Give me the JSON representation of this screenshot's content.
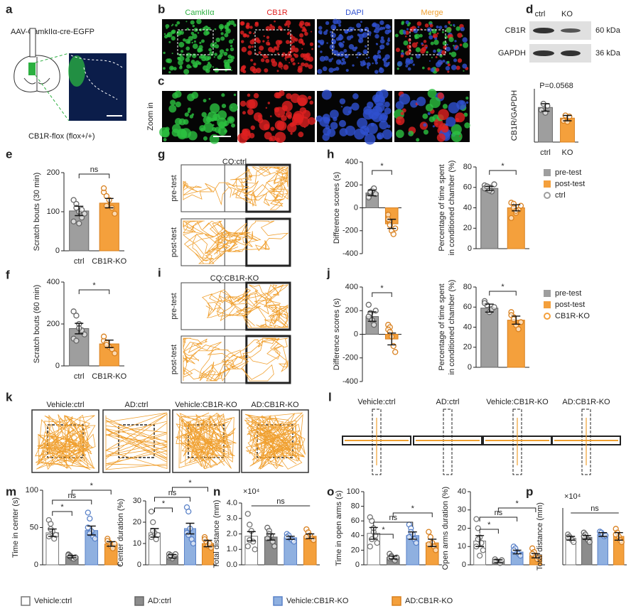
{
  "panel_letters": [
    "a",
    "b",
    "c",
    "d",
    "e",
    "f",
    "g",
    "h",
    "i",
    "j",
    "k",
    "l",
    "m",
    "n",
    "o",
    "p"
  ],
  "panel_a": {
    "virus": "AAV-CamkIIα-cre-EGFP",
    "mouse": "CB1R-flox (flox+/+)"
  },
  "panel_b": {
    "channels": [
      "CamkIIα",
      "CB1R",
      "DAPI",
      "Merge"
    ]
  },
  "panel_c": {
    "label": "Zoom in"
  },
  "panel_d": {
    "lanes": [
      "ctrl",
      "KO"
    ],
    "bands": [
      {
        "protein": "CB1R",
        "size": "60 kDa"
      },
      {
        "protein": "GAPDH",
        "size": "36 kDa"
      }
    ]
  },
  "panel_g": {
    "title": "CQ:ctrl",
    "rows": [
      "pre-test",
      "post-test"
    ]
  },
  "panel_i": {
    "title": "CQ:CB1R-KO",
    "rows": [
      "pre-test",
      "post-test"
    ]
  },
  "panel_k": {
    "groups": [
      "Vehicle:ctrl",
      "AD:ctrl",
      "Vehicle:CB1R-KO",
      "AD:CB1R-KO"
    ]
  },
  "panel_l": {
    "groups": [
      "Vehicle:ctrl",
      "AD:ctrl",
      "Vehicle:CB1R-KO",
      "AD:CB1R-KO"
    ]
  },
  "group_legend": [
    {
      "name": "Vehicle:ctrl",
      "color": "#ffffff"
    },
    {
      "name": "AD:ctrl",
      "color": "#8c8c8c"
    },
    {
      "name": "Vehicle:CB1R-KO",
      "color": "#8fb0e0"
    },
    {
      "name": "AD:CB1R-KO",
      "color": "#f4a03c"
    }
  ],
  "chart_data": [
    {
      "type": "bar",
      "y_label": [
        "CB1R/GAPDH"
      ],
      "categories": [
        "ctrl",
        "KO"
      ],
      "values": [
        0.65,
        0.45
      ],
      "errors": [
        0.07,
        0.05
      ],
      "points": [
        [
          0.6,
          0.72,
          0.55,
          0.68
        ],
        [
          0.4,
          0.5,
          0.38,
          0.48
        ]
      ],
      "colors": [
        "#9e9e9e",
        "#f4a03c"
      ],
      "ylim": [
        0,
        1
      ],
      "annotation": "P=0.0568",
      "significance": []
    },
    {
      "type": "bar",
      "y_label": [
        "Scratch bouts (30 min)"
      ],
      "categories": [
        "ctrl",
        "CB1R-KO"
      ],
      "values": [
        102,
        122
      ],
      "errors": [
        12,
        12
      ],
      "points": [
        [
          130,
          120,
          100,
          85,
          95,
          75,
          110,
          70,
          105
        ],
        [
          150,
          140,
          130,
          110,
          95,
          160,
          115
        ]
      ],
      "colors": [
        "#9e9e9e",
        "#f4a03c"
      ],
      "ylim": [
        0,
        200
      ],
      "yticks": [
        0,
        100,
        200
      ],
      "significance": [
        "ns"
      ]
    },
    {
      "type": "bar",
      "y_label": [
        "Scratch bouts (60 min)"
      ],
      "categories": [
        "ctrl",
        "CB1R-KO"
      ],
      "values": [
        178,
        105
      ],
      "errors": [
        25,
        18
      ],
      "points": [
        [
          260,
          240,
          200,
          170,
          150,
          130,
          120,
          180
        ],
        [
          120,
          110,
          90,
          80,
          60,
          140,
          100
        ]
      ],
      "colors": [
        "#9e9e9e",
        "#f4a03c"
      ],
      "ylim": [
        0,
        400
      ],
      "yticks": [
        0,
        200,
        400
      ],
      "significance": [
        "*"
      ]
    },
    {
      "type": "bar",
      "y_label": [
        "Difference scores (s)"
      ],
      "categories": [
        null,
        null
      ],
      "values": [
        130,
        -140
      ],
      "errors": [
        25,
        40
      ],
      "points": [
        [
          100,
          130,
          150,
          170,
          120,
          90,
          140
        ],
        [
          -60,
          -120,
          -200,
          -230,
          -180,
          -100,
          -150
        ]
      ],
      "colors": [
        "#9e9e9e",
        "#f4a03c"
      ],
      "ylim": [
        -400,
        400
      ],
      "yticks": [
        -400,
        -200,
        0,
        200,
        400
      ],
      "significance": [
        "*"
      ]
    },
    {
      "type": "bar",
      "y_label": [
        "Percentage of time spent",
        "in conditioned chamber (%)"
      ],
      "categories": [
        null,
        null
      ],
      "values": [
        59,
        40
      ],
      "errors": [
        2,
        3
      ],
      "points": [
        [
          62,
          58,
          60,
          56,
          63,
          59,
          61,
          57
        ],
        [
          45,
          40,
          35,
          38,
          42,
          30,
          44,
          37
        ]
      ],
      "colors": [
        "#9e9e9e",
        "#f4a03c"
      ],
      "ylim": [
        0,
        80
      ],
      "yticks": [
        0,
        20,
        40,
        60,
        80
      ],
      "significance": [
        "*"
      ],
      "legend": [
        {
          "name": "pre-test",
          "color": "#9e9e9e",
          "marker": "square"
        },
        {
          "name": "post-test",
          "color": "#f4a03c",
          "marker": "square"
        },
        {
          "name": "ctrl",
          "color": "#9e9e9e",
          "marker": "circle"
        }
      ]
    },
    {
      "type": "bar",
      "y_label": [
        "Difference scores (s)"
      ],
      "categories": [
        null,
        null
      ],
      "values": [
        150,
        -40
      ],
      "errors": [
        40,
        50
      ],
      "points": [
        [
          250,
          180,
          120,
          80,
          200,
          150
        ],
        [
          80,
          60,
          -20,
          -100,
          -150,
          40,
          20
        ]
      ],
      "colors": [
        "#9e9e9e",
        "#f4a03c"
      ],
      "ylim": [
        -400,
        400
      ],
      "yticks": [
        -400,
        -200,
        0,
        200,
        400
      ],
      "significance": [
        "*"
      ]
    },
    {
      "type": "bar",
      "y_label": [
        "Percentage of time spent",
        "in conditioned chamber (%)"
      ],
      "categories": [
        null,
        null
      ],
      "values": [
        59,
        47
      ],
      "errors": [
        4,
        4
      ],
      "points": [
        [
          66,
          62,
          55,
          58,
          60,
          64
        ],
        [
          55,
          50,
          42,
          38,
          45,
          52,
          48
        ]
      ],
      "colors": [
        "#9e9e9e",
        "#f4a03c"
      ],
      "ylim": [
        0,
        80
      ],
      "yticks": [
        0,
        20,
        40,
        60,
        80
      ],
      "significance": [
        "*"
      ],
      "legend": [
        {
          "name": "pre-test",
          "color": "#9e9e9e",
          "marker": "square"
        },
        {
          "name": "post-test",
          "color": "#f4a03c",
          "marker": "square"
        },
        {
          "name": "CB1R-KO",
          "color": "#f4a03c",
          "marker": "circle"
        }
      ]
    },
    {
      "type": "bar",
      "y_label": [
        "Time in center (s)"
      ],
      "categories": [
        null,
        null,
        null,
        null
      ],
      "values": [
        43,
        11,
        46,
        28
      ],
      "errors": [
        5,
        1.5,
        6,
        3
      ],
      "points": [
        [
          60,
          55,
          45,
          35,
          40,
          38,
          48
        ],
        [
          14,
          12,
          9,
          8,
          10,
          13,
          11
        ],
        [
          70,
          62,
          45,
          38,
          35,
          50,
          42
        ],
        [
          35,
          30,
          25,
          22,
          28,
          32
        ]
      ],
      "colors": [
        "#ffffff",
        "#8c8c8c",
        "#8fb0e0",
        "#f4a03c"
      ],
      "ylim": [
        0,
        100
      ],
      "yticks": [
        0,
        50,
        100
      ],
      "significance": [
        "*",
        "ns",
        "*"
      ]
    },
    {
      "type": "bar",
      "y_label": [
        "Center duration (%)"
      ],
      "categories": [
        null,
        null,
        null,
        null
      ],
      "values": [
        15,
        4,
        17,
        10
      ],
      "errors": [
        2,
        0.8,
        2.5,
        1.5
      ],
      "points": [
        [
          25,
          20,
          15,
          12,
          14,
          13,
          16
        ],
        [
          5,
          4,
          3,
          4,
          5,
          3.5,
          4.5
        ],
        [
          27,
          25,
          17,
          12,
          10,
          15,
          14
        ],
        [
          13,
          11,
          9,
          10,
          8,
          12
        ]
      ],
      "colors": [
        "#ffffff",
        "#8c8c8c",
        "#8fb0e0",
        "#f4a03c"
      ],
      "ylim": [
        0,
        30
      ],
      "yticks": [
        0,
        10,
        20,
        30
      ],
      "significance": [
        "*",
        "ns",
        "*"
      ]
    },
    {
      "type": "bar",
      "y_label": [
        "Total distance (mm)"
      ],
      "scale_label": "×10⁴",
      "categories": [
        null,
        null,
        null,
        null
      ],
      "values": [
        1.85,
        1.8,
        1.75,
        1.85
      ],
      "errors": [
        0.3,
        0.2,
        0.1,
        0.15
      ],
      "points": [
        [
          3.3,
          2.6,
          2.2,
          1.5,
          1.0,
          1.2,
          1.6
        ],
        [
          2.4,
          2.2,
          1.9,
          1.5,
          1.2,
          1.7,
          2.0
        ],
        [
          2.0,
          1.9,
          1.7,
          1.6,
          1.5,
          1.8
        ],
        [
          2.3,
          2.1,
          1.9,
          1.7,
          1.6,
          1.8
        ]
      ],
      "colors": [
        "#ffffff",
        "#8c8c8c",
        "#8fb0e0",
        "#f4a03c"
      ],
      "ylim": [
        0,
        4
      ],
      "yticks": [
        {
          "value": 0,
          "label": "0.0"
        },
        {
          "value": 1,
          "label": "1.0"
        },
        {
          "value": 2,
          "label": "2.0"
        },
        {
          "value": 3,
          "label": "3.0"
        },
        {
          "value": 4,
          "label": "4.0"
        }
      ],
      "significance": [
        "ns"
      ]
    },
    {
      "type": "bar",
      "y_label": [
        "Time in open arms (s)"
      ],
      "categories": [
        null,
        null,
        null,
        null
      ],
      "values": [
        43,
        10,
        40,
        30
      ],
      "errors": [
        8,
        2,
        5,
        5
      ],
      "points": [
        [
          65,
          60,
          45,
          40,
          30,
          25,
          35,
          50
        ],
        [
          15,
          12,
          8,
          6,
          10,
          9,
          11
        ],
        [
          55,
          50,
          42,
          35,
          30,
          38,
          45
        ],
        [
          45,
          38,
          30,
          25,
          20,
          28
        ]
      ],
      "colors": [
        "#ffffff",
        "#8c8c8c",
        "#8fb0e0",
        "#f4a03c"
      ],
      "ylim": [
        0,
        100
      ],
      "yticks": [
        0,
        20,
        40,
        60,
        80,
        100
      ],
      "significance": [
        "*",
        "ns",
        "*"
      ]
    },
    {
      "type": "bar",
      "y_label": [
        "Open arms duration (%)"
      ],
      "categories": [
        null,
        null,
        null,
        null
      ],
      "values": [
        13,
        2,
        7,
        5
      ],
      "errors": [
        3,
        0.8,
        1,
        1.2
      ],
      "points": [
        [
          25,
          20,
          15,
          12,
          8,
          10,
          14,
          5
        ],
        [
          3,
          2,
          1.5,
          1,
          2.5,
          1.8
        ],
        [
          10,
          9,
          7,
          6,
          5,
          8
        ],
        [
          9,
          7,
          5,
          3,
          4,
          6
        ]
      ],
      "colors": [
        "#ffffff",
        "#8c8c8c",
        "#8fb0e0",
        "#f4a03c"
      ],
      "ylim": [
        0,
        40
      ],
      "yticks": [
        0,
        10,
        20,
        30,
        40
      ],
      "significance": [
        "*",
        "ns",
        "*"
      ]
    },
    {
      "type": "bar",
      "y_label": [
        "Total distance (mm)"
      ],
      "scale_label": "×10⁴",
      "categories": [
        null,
        null,
        null,
        null
      ],
      "values": [
        1.4,
        1.45,
        1.6,
        1.5
      ],
      "errors": [
        0.1,
        0.1,
        0.1,
        0.2
      ],
      "points": [
        [
          1.6,
          1.5,
          1.4,
          1.3,
          1.2,
          1.45
        ],
        [
          1.7,
          1.6,
          1.4,
          1.3,
          1.2,
          1.5
        ],
        [
          1.75,
          1.7,
          1.6,
          1.5,
          1.55
        ],
        [
          1.9,
          1.7,
          1.5,
          1.3,
          1.2,
          1.6
        ]
      ],
      "colors": [
        "#ffffff",
        "#8c8c8c",
        "#8fb0e0",
        "#f4a03c"
      ],
      "ylim": [
        0,
        3
      ],
      "significance": [
        "ns"
      ]
    }
  ]
}
